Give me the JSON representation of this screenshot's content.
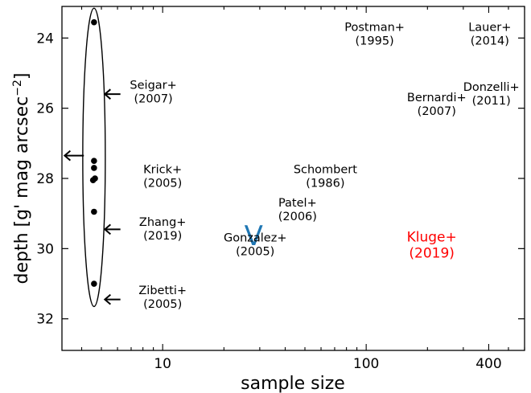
{
  "chart_data": {
    "type": "scatter",
    "xlabel": "sample size",
    "ylabel": "depth [g' mag arcsec",
    "ylabel_sup": "−2",
    "ylabel_close": "]",
    "xscale": "log",
    "xlim": [
      3.2,
      600
    ],
    "ylim": [
      32.9,
      23.1
    ],
    "y_inverted": true,
    "x_ticks": [
      10,
      100,
      400
    ],
    "x_tick_labels": [
      "10",
      "100",
      "400"
    ],
    "y_ticks": [
      24,
      26,
      28,
      30,
      32
    ],
    "y_tick_labels": [
      "24",
      "26",
      "28",
      "30",
      "32"
    ],
    "grid": false,
    "points": [
      {
        "x": 4.6,
        "y": 23.55
      },
      {
        "x": 4.6,
        "y": 27.5
      },
      {
        "x": 4.6,
        "y": 27.7
      },
      {
        "x": 4.55,
        "y": 28.05
      },
      {
        "x": 4.65,
        "y": 28.0
      },
      {
        "x": 4.6,
        "y": 28.95
      },
      {
        "x": 4.6,
        "y": 31.0
      }
    ],
    "ellipse": {
      "x": 4.6,
      "y_top": 23.15,
      "y_bottom": 31.65
    },
    "left_arrows": [
      {
        "x_from": 6.2,
        "x_to": 5.2,
        "y": 25.6
      },
      {
        "x_from": 6.2,
        "x_to": 5.2,
        "y": 29.45
      },
      {
        "x_from": 6.2,
        "x_to": 5.2,
        "y": 31.45
      },
      {
        "x_from": 4.1,
        "x_to": 3.3,
        "y": 27.35
      }
    ],
    "marker_v": {
      "label": "V",
      "x": 28,
      "y": 29.6,
      "color": "#1f77b4"
    },
    "annotations": [
      {
        "name": "Seigar",
        "lines": [
          "Seigar+",
          "(2007)"
        ],
        "x": 9.0,
        "y": 25.45,
        "color": "#000000",
        "size": "normal"
      },
      {
        "name": "Krick",
        "lines": [
          "Krick+",
          "(2005)"
        ],
        "x": 10.0,
        "y": 27.85,
        "color": "#000000",
        "size": "normal"
      },
      {
        "name": "Zhang",
        "lines": [
          "Zhang+",
          "(2019)"
        ],
        "x": 10.0,
        "y": 29.35,
        "color": "#000000",
        "size": "normal"
      },
      {
        "name": "Zibetti",
        "lines": [
          "Zibetti+",
          "(2005)"
        ],
        "x": 10.0,
        "y": 31.3,
        "color": "#000000",
        "size": "normal"
      },
      {
        "name": "Gonzalez",
        "lines": [
          "Gonzalez+",
          "(2005)"
        ],
        "x": 28.5,
        "y": 29.8,
        "color": "#000000",
        "size": "normal"
      },
      {
        "name": "Patel",
        "lines": [
          "Patel+",
          "(2006)"
        ],
        "x": 46,
        "y": 28.8,
        "color": "#000000",
        "size": "normal"
      },
      {
        "name": "Schombert",
        "lines": [
          "Schombert",
          "(1986)"
        ],
        "x": 63,
        "y": 27.85,
        "color": "#000000",
        "size": "normal"
      },
      {
        "name": "Postman",
        "lines": [
          "Postman+",
          "(1995)"
        ],
        "x": 110,
        "y": 23.8,
        "color": "#000000",
        "size": "normal"
      },
      {
        "name": "Lauer",
        "lines": [
          "Lauer+",
          "(2014)"
        ],
        "x": 405,
        "y": 23.8,
        "color": "#000000",
        "size": "normal"
      },
      {
        "name": "Bernardi",
        "lines": [
          "Bernardi+",
          "(2007)"
        ],
        "x": 222,
        "y": 25.8,
        "color": "#000000",
        "size": "normal"
      },
      {
        "name": "Donzelli",
        "lines": [
          "Donzelli+",
          "(2011)"
        ],
        "x": 412,
        "y": 25.5,
        "color": "#000000",
        "size": "normal"
      },
      {
        "name": "Kluge",
        "lines": [
          "Kluge+",
          "(2019)"
        ],
        "x": 210,
        "y": 29.8,
        "color": "#ff0000",
        "size": "big"
      }
    ]
  }
}
